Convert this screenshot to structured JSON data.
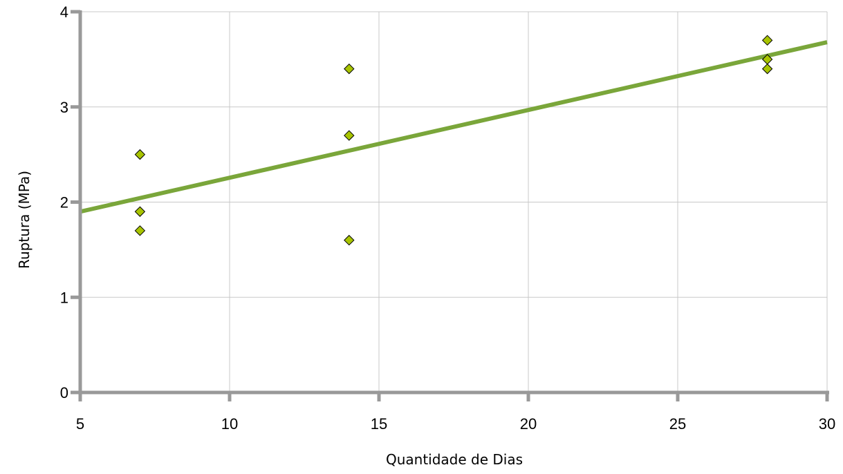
{
  "chart_data": {
    "type": "scatter",
    "title": "",
    "xlabel": "Quantidade de Dias",
    "ylabel": "Ruptura (MPa)",
    "xlim": [
      5,
      30
    ],
    "ylim": [
      0,
      4
    ],
    "x_ticks": [
      "5",
      "10",
      "15",
      "20",
      "25",
      "30"
    ],
    "y_ticks": [
      "0",
      "1",
      "2",
      "3",
      "4"
    ],
    "grid": true,
    "legend": "none",
    "series": [
      {
        "marker": "diamond",
        "color": "#a8c400",
        "points": [
          {
            "x": 7,
            "y": 2.5
          },
          {
            "x": 7,
            "y": 1.9
          },
          {
            "x": 7,
            "y": 1.7
          },
          {
            "x": 14,
            "y": 3.4
          },
          {
            "x": 14,
            "y": 2.7
          },
          {
            "x": 14,
            "y": 1.6
          },
          {
            "x": 28,
            "y": 3.7
          },
          {
            "x": 28,
            "y": 3.5
          },
          {
            "x": 28,
            "y": 3.4
          }
        ]
      }
    ],
    "trendline": {
      "type": "linear",
      "color": "#7aa63a",
      "x": [
        5,
        30
      ],
      "y": [
        1.9,
        3.68
      ]
    },
    "colors": {
      "axis": "#999999",
      "grid": "#c8c8c8",
      "marker_stroke": "#000000"
    }
  }
}
